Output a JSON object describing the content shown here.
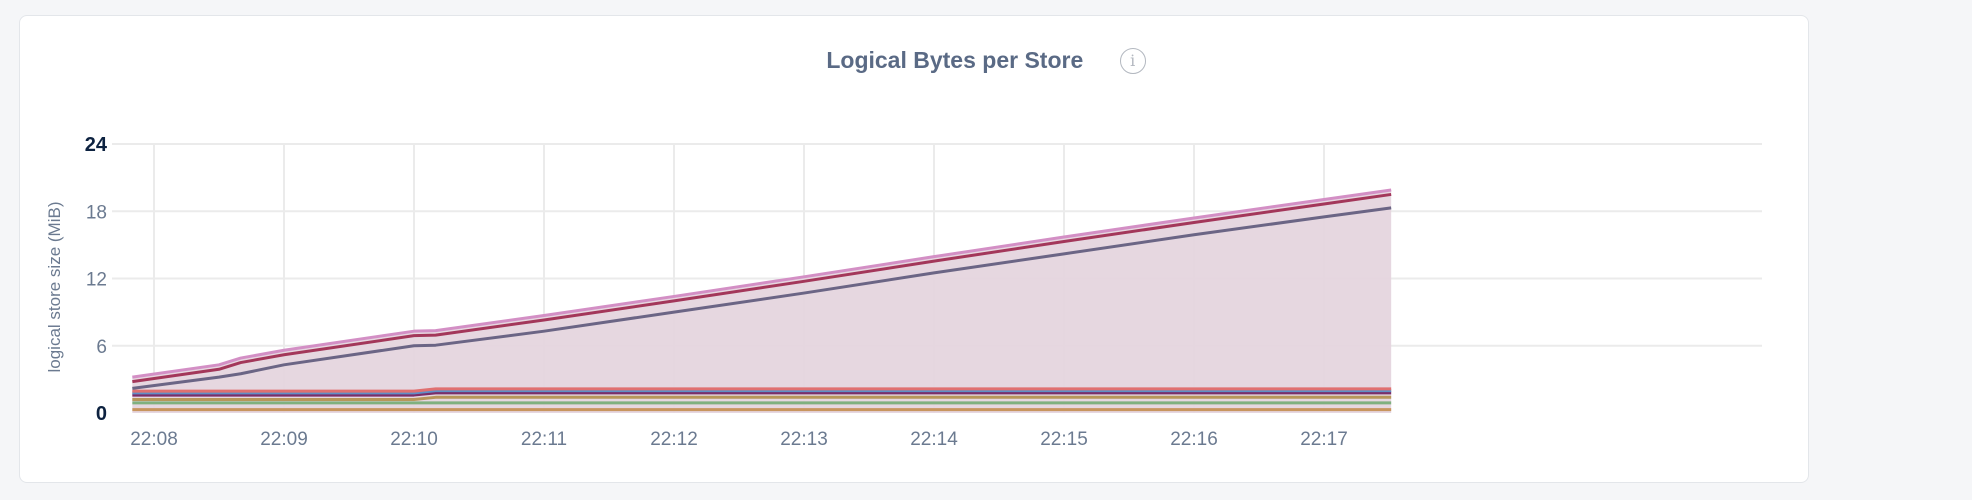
{
  "chart_data": {
    "type": "area",
    "stacked": true,
    "title": "Logical Bytes per Store",
    "info_icon": "info-circle-icon",
    "ylabel": "logical store size (MiB)",
    "xlabel": "",
    "ylim": [
      0,
      24
    ],
    "yticks": [
      "0",
      "6",
      "12",
      "18",
      "24"
    ],
    "xticks": [
      "22:08",
      "22:09",
      "22:10",
      "22:11",
      "22:12",
      "22:13",
      "22:14",
      "22:15",
      "22:16",
      "22:17"
    ],
    "grid": true,
    "legend": "none",
    "fill_color": "#e5d5de",
    "x": [
      "22:07:50",
      "22:08:30",
      "22:08:40",
      "22:09:00",
      "22:10:00",
      "22:10:10",
      "22:11:00",
      "22:12:00",
      "22:13:00",
      "22:14:00",
      "22:15:00",
      "22:16:00",
      "22:17:00",
      "22:17:31"
    ],
    "series": [
      {
        "color": "#c8955e",
        "values": [
          0.3,
          0.3,
          0.3,
          0.3,
          0.3,
          0.3,
          0.3,
          0.3,
          0.3,
          0.3,
          0.3,
          0.3,
          0.3,
          0.3
        ]
      },
      {
        "color": "#7fb07f",
        "values": [
          0.6,
          0.6,
          0.6,
          0.6,
          0.6,
          0.6,
          0.6,
          0.6,
          0.6,
          0.6,
          0.6,
          0.6,
          0.6,
          0.6
        ]
      },
      {
        "color": "#b8965a",
        "values": [
          0.3,
          0.3,
          0.3,
          0.3,
          0.3,
          0.5,
          0.5,
          0.5,
          0.5,
          0.5,
          0.5,
          0.5,
          0.5,
          0.5
        ]
      },
      {
        "color": "#7a2e6a",
        "values": [
          0.4,
          0.4,
          0.4,
          0.4,
          0.4,
          0.4,
          0.4,
          0.4,
          0.4,
          0.4,
          0.4,
          0.4,
          0.4,
          0.4
        ]
      },
      {
        "color": "#5f8fc7",
        "values": [
          0.2,
          0.2,
          0.2,
          0.2,
          0.2,
          0.2,
          0.2,
          0.2,
          0.2,
          0.2,
          0.2,
          0.2,
          0.2,
          0.2
        ]
      },
      {
        "color": "#e07070",
        "values": [
          0.15,
          0.15,
          0.15,
          0.15,
          0.15,
          0.15,
          0.15,
          0.15,
          0.15,
          0.15,
          0.15,
          0.15,
          0.15,
          0.15
        ]
      },
      {
        "color": "#6b6585",
        "values": [
          0.25,
          1.25,
          1.55,
          2.35,
          4.05,
          3.9,
          5.15,
          6.85,
          8.55,
          10.35,
          12.05,
          13.75,
          15.35,
          16.15
        ]
      },
      {
        "color": "#a3375a",
        "values": [
          0.6,
          0.7,
          1.0,
          0.9,
          0.9,
          0.9,
          1.0,
          1.0,
          1.05,
          1.05,
          1.1,
          1.1,
          1.15,
          1.2
        ]
      },
      {
        "color": "#d38fc5",
        "values": [
          0.4,
          0.4,
          0.4,
          0.4,
          0.4,
          0.4,
          0.4,
          0.4,
          0.4,
          0.4,
          0.4,
          0.4,
          0.4,
          0.4
        ]
      }
    ]
  }
}
